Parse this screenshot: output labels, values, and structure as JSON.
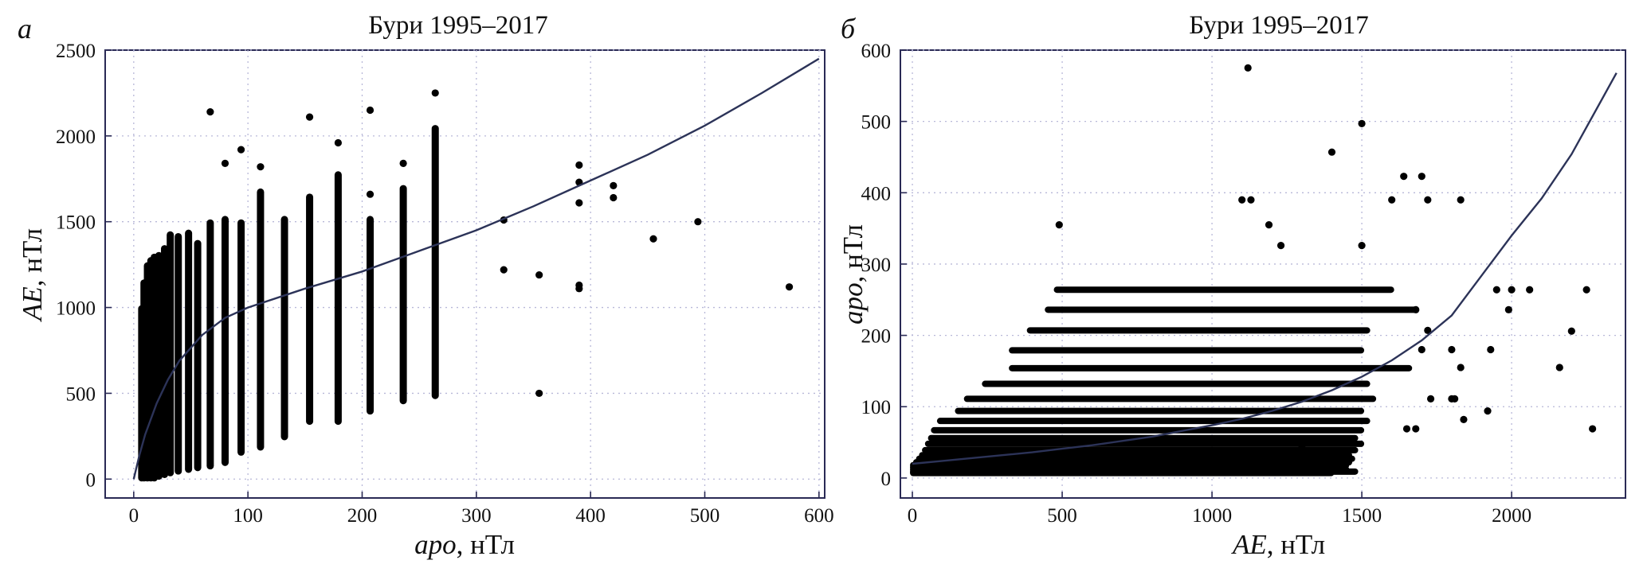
{
  "chart_data": [
    {
      "panel": "а",
      "type": "scatter",
      "title": "Бури 1995–2017",
      "xlabel_var": "apo",
      "xlabel_unit": ", нТл",
      "ylabel_var": "AE",
      "ylabel_unit": ", нТл",
      "xlim": [
        -25,
        605
      ],
      "ylim": [
        -110,
        2500
      ],
      "xticks": [
        0,
        100,
        200,
        300,
        400,
        500,
        600
      ],
      "yticks": [
        0,
        500,
        1000,
        1500,
        2000,
        2500
      ],
      "grid": true,
      "columns": [
        {
          "x": 7,
          "ymin": 0,
          "ymax": 1000
        },
        {
          "x": 9,
          "ymin": 0,
          "ymax": 1150
        },
        {
          "x": 12,
          "ymin": 0,
          "ymax": 1250
        },
        {
          "x": 15,
          "ymin": 0,
          "ymax": 1280
        },
        {
          "x": 18,
          "ymin": 0,
          "ymax": 1300
        },
        {
          "x": 22,
          "ymin": 10,
          "ymax": 1310
        },
        {
          "x": 27,
          "ymin": 20,
          "ymax": 1350
        },
        {
          "x": 32,
          "ymin": 30,
          "ymax": 1430
        },
        {
          "x": 39,
          "ymin": 40,
          "ymax": 1420
        },
        {
          "x": 48,
          "ymin": 50,
          "ymax": 1440
        },
        {
          "x": 56,
          "ymin": 60,
          "ymax": 1380
        },
        {
          "x": 67,
          "ymin": 70,
          "ymax": 1500
        },
        {
          "x": 80,
          "ymin": 90,
          "ymax": 1520
        },
        {
          "x": 94,
          "ymin": 150,
          "ymax": 1500
        },
        {
          "x": 111,
          "ymin": 180,
          "ymax": 1680
        },
        {
          "x": 132,
          "ymin": 240,
          "ymax": 1520
        },
        {
          "x": 154,
          "ymin": 330,
          "ymax": 1650
        },
        {
          "x": 179,
          "ymin": 330,
          "ymax": 1780
        },
        {
          "x": 207,
          "ymin": 390,
          "ymax": 1520
        },
        {
          "x": 236,
          "ymin": 450,
          "ymax": 1700
        },
        {
          "x": 264,
          "ymin": 480,
          "ymax": 2050
        }
      ],
      "points": [
        [
          67,
          2140
        ],
        [
          80,
          1840
        ],
        [
          94,
          1920
        ],
        [
          111,
          1820
        ],
        [
          154,
          2110
        ],
        [
          179,
          1960
        ],
        [
          207,
          2150
        ],
        [
          207,
          1660
        ],
        [
          236,
          1840
        ],
        [
          264,
          2250
        ],
        [
          324,
          1510
        ],
        [
          324,
          1220
        ],
        [
          355,
          1190
        ],
        [
          355,
          500
        ],
        [
          390,
          1830
        ],
        [
          390,
          1730
        ],
        [
          390,
          1610
        ],
        [
          390,
          1130
        ],
        [
          390,
          1110
        ],
        [
          420,
          1710
        ],
        [
          420,
          1640
        ],
        [
          455,
          1400
        ],
        [
          494,
          1500
        ],
        [
          574,
          1120
        ]
      ],
      "fit": {
        "x": [
          0,
          5,
          10,
          20,
          30,
          40,
          60,
          80,
          100,
          150,
          200,
          250,
          300,
          350,
          400,
          450,
          500,
          550,
          600
        ],
        "y": [
          0,
          140,
          260,
          440,
          580,
          690,
          840,
          940,
          1000,
          1110,
          1210,
          1330,
          1450,
          1590,
          1740,
          1890,
          2060,
          2250,
          2450
        ]
      }
    },
    {
      "panel": "б",
      "type": "scatter",
      "title": "Бури 1995–2017",
      "xlabel_var": "AE",
      "xlabel_unit": ", нТл",
      "ylabel_var": "apo",
      "ylabel_unit": ", нТл",
      "xlim": [
        -40,
        2380
      ],
      "ylim": [
        -28,
        600
      ],
      "xticks": [
        0,
        500,
        1000,
        1500,
        2000
      ],
      "yticks": [
        0,
        100,
        200,
        300,
        400,
        500,
        600
      ],
      "grid": true,
      "rows": [
        {
          "y": 7,
          "xmin": 0,
          "xmax": 1400
        },
        {
          "y": 9,
          "xmin": 0,
          "xmax": 1480
        },
        {
          "y": 12,
          "xmin": 0,
          "xmax": 1450
        },
        {
          "y": 15,
          "xmin": 0,
          "xmax": 1440
        },
        {
          "y": 18,
          "xmin": 0,
          "xmax": 1450
        },
        {
          "y": 22,
          "xmin": 10,
          "xmax": 1460
        },
        {
          "y": 27,
          "xmin": 20,
          "xmax": 1470
        },
        {
          "y": 32,
          "xmin": 30,
          "xmax": 1460
        },
        {
          "y": 39,
          "xmin": 40,
          "xmax": 1480
        },
        {
          "y": 48,
          "xmin": 50,
          "xmax": 1500
        },
        {
          "y": 56,
          "xmin": 60,
          "xmax": 1480
        },
        {
          "y": 67,
          "xmin": 70,
          "xmax": 1500
        },
        {
          "y": 80,
          "xmin": 90,
          "xmax": 1520
        },
        {
          "y": 94,
          "xmin": 150,
          "xmax": 1500
        },
        {
          "y": 111,
          "xmin": 180,
          "xmax": 1540
        },
        {
          "y": 132,
          "xmin": 240,
          "xmax": 1520
        },
        {
          "y": 154,
          "xmin": 330,
          "xmax": 1660
        },
        {
          "y": 179,
          "xmin": 330,
          "xmax": 1500
        },
        {
          "y": 207,
          "xmin": 390,
          "xmax": 1520
        },
        {
          "y": 236,
          "xmin": 450,
          "xmax": 1680
        },
        {
          "y": 264,
          "xmin": 480,
          "xmax": 1600
        }
      ],
      "points": [
        [
          1120,
          575
        ],
        [
          1500,
          497
        ],
        [
          1400,
          457
        ],
        [
          1640,
          423
        ],
        [
          1700,
          423
        ],
        [
          1600,
          390
        ],
        [
          1720,
          390
        ],
        [
          1830,
          390
        ],
        [
          1100,
          390
        ],
        [
          1130,
          390
        ],
        [
          1190,
          355
        ],
        [
          1230,
          326
        ],
        [
          1500,
          326
        ],
        [
          490,
          355
        ],
        [
          1700,
          180
        ],
        [
          1800,
          180
        ],
        [
          1930,
          180
        ],
        [
          2200,
          206
        ],
        [
          2160,
          155
        ],
        [
          1830,
          155
        ],
        [
          1800,
          111
        ],
        [
          1810,
          111
        ],
        [
          1730,
          111
        ],
        [
          1840,
          82
        ],
        [
          1920,
          94
        ],
        [
          1650,
          69
        ],
        [
          1680,
          69
        ],
        [
          2270,
          69
        ],
        [
          1950,
          264
        ],
        [
          2000,
          264
        ],
        [
          2060,
          264
        ],
        [
          2250,
          264
        ],
        [
          1990,
          236
        ],
        [
          1680,
          236
        ],
        [
          1720,
          207
        ],
        [
          1270,
          30
        ],
        [
          1230,
          20
        ],
        [
          1300,
          45
        ]
      ],
      "fit": {
        "x": [
          0,
          100,
          200,
          300,
          400,
          500,
          600,
          700,
          800,
          900,
          1000,
          1100,
          1200,
          1300,
          1400,
          1500,
          1600,
          1700,
          1800,
          1900,
          2000,
          2100,
          2200,
          2300,
          2350
        ],
        "y": [
          20,
          24,
          28,
          32,
          36,
          41,
          46,
          52,
          58,
          66,
          74,
          83,
          94,
          107,
          123,
          142,
          165,
          193,
          228,
          284,
          340,
          392,
          454,
          530,
          568
        ]
      }
    }
  ]
}
